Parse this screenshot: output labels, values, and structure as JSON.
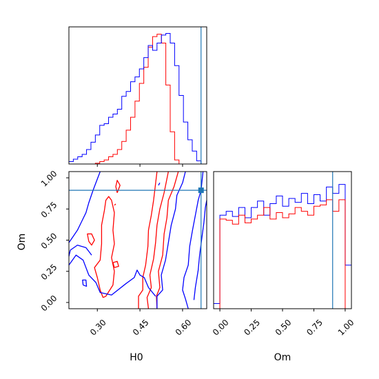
{
  "colors": {
    "series_a": "#ff0000",
    "series_b": "#0000ff",
    "truth": "#1f77b4",
    "frame": "#000000",
    "background": "#ffffff"
  },
  "chart_data": [
    {
      "panel": "H0 marginal",
      "type": "histogram-step",
      "x_range": [
        0.2,
        0.685
      ],
      "y_axis": "normalized counts (no ticks shown)",
      "bin_edges": [
        0.2,
        0.2155,
        0.231,
        0.2465,
        0.262,
        0.2775,
        0.293,
        0.3085,
        0.324,
        0.3395,
        0.355,
        0.3705,
        0.386,
        0.4015,
        0.417,
        0.4325,
        0.448,
        0.4635,
        0.479,
        0.4945,
        0.51,
        0.5255,
        0.541,
        0.5565,
        0.572,
        0.5875,
        0.603,
        0.6185,
        0.634,
        0.6495,
        0.665,
        0.685
      ],
      "series": [
        {
          "color": "#ff0000",
          "counts": [
            0,
            0,
            0,
            0,
            0,
            0,
            1,
            3,
            5,
            9,
            12,
            18,
            28,
            42,
            58,
            78,
            100,
            120,
            145,
            158,
            161,
            150,
            98,
            40,
            5,
            0,
            0,
            0,
            0,
            0,
            0
          ]
        },
        {
          "color": "#0000ff",
          "counts": [
            3,
            6,
            9,
            12,
            18,
            27,
            36,
            48,
            50,
            58,
            62,
            68,
            84,
            90,
            102,
            108,
            118,
            132,
            147,
            141,
            150,
            160,
            162,
            150,
            122,
            85,
            52,
            30,
            16,
            4,
            0
          ]
        }
      ],
      "truth_x": 0.665
    },
    {
      "panel": "H0 vs Om",
      "type": "contour-2d",
      "x_range": [
        0.2,
        0.685
      ],
      "y_range": [
        -0.05,
        1.05
      ],
      "xlabel": "H0",
      "ylabel": "Om",
      "x_ticks": [
        "0.30",
        "0.45",
        "0.60"
      ],
      "y_ticks": [
        "0.00",
        "0.25",
        "0.50",
        "0.75",
        "1.00"
      ],
      "truth_point": [
        0.665,
        0.9
      ]
    },
    {
      "panel": "Om marginal",
      "type": "histogram-step",
      "x_range": [
        -0.05,
        1.05
      ],
      "xlabel": "Om",
      "x_ticks": [
        "0.00",
        "0.25",
        "0.50",
        "0.75",
        "1.00"
      ],
      "bin_edges": [
        -0.05,
        0.0,
        0.05,
        0.1,
        0.15,
        0.2,
        0.25,
        0.3,
        0.35,
        0.4,
        0.45,
        0.5,
        0.55,
        0.6,
        0.65,
        0.7,
        0.75,
        0.8,
        0.85,
        0.9,
        0.95,
        1.0,
        1.05
      ],
      "series": [
        {
          "color": "#0000ff",
          "counts": [
            0.04,
            0.73,
            0.76,
            0.72,
            0.79,
            0.71,
            0.79,
            0.84,
            0.73,
            0.82,
            0.88,
            0.8,
            0.86,
            0.83,
            0.9,
            0.82,
            0.89,
            0.84,
            0.95,
            0.9,
            0.97,
            0.34
          ]
        },
        {
          "color": "#ff0000",
          "counts": [
            0,
            0.7,
            0.69,
            0.66,
            0.73,
            0.67,
            0.7,
            0.73,
            0.79,
            0.7,
            0.75,
            0.71,
            0.74,
            0.79,
            0.76,
            0.73,
            0.8,
            0.81,
            0.85,
            0.76,
            0.85,
            0
          ]
        }
      ],
      "truth_x": 0.9
    }
  ]
}
